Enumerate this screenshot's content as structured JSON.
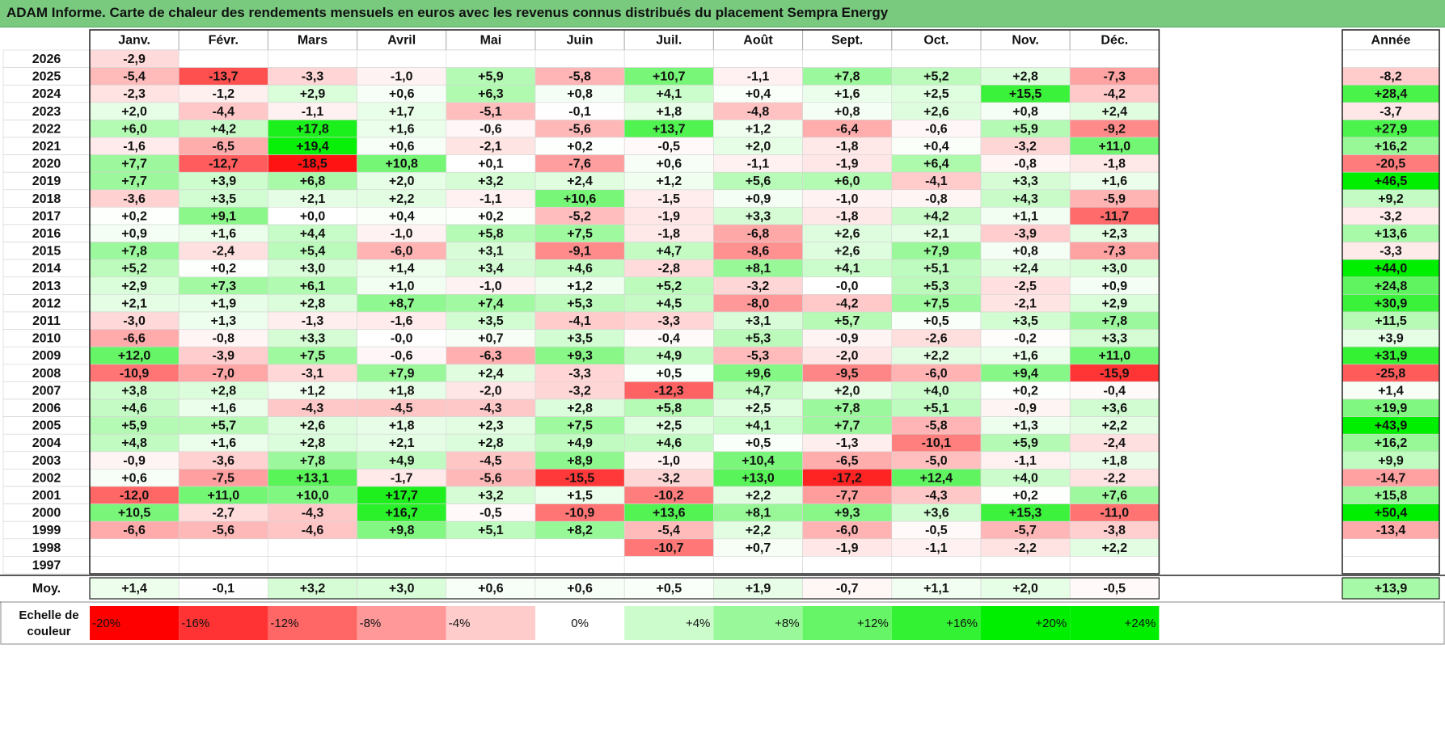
{
  "title": "ADAM Informe. Carte de chaleur des rendements mensuels en euros avec les revenus connus distribués du placement Sempra Energy",
  "chart_data": {
    "type": "heatmap",
    "title": "ADAM Informe. Carte de chaleur des rendements mensuels en euros avec les revenus connus distribués du placement Sempra Energy",
    "months": [
      "Janv.",
      "Févr.",
      "Mars",
      "Avril",
      "Mai",
      "Juin",
      "Juil.",
      "Août",
      "Sept.",
      "Oct.",
      "Nov.",
      "Déc."
    ],
    "year_header": "Année",
    "rows": [
      {
        "year": "2026",
        "values": [
          "-2,9",
          "",
          "",
          "",
          "",
          "",
          "",
          "",
          "",
          "",
          "",
          ""
        ],
        "annual": ""
      },
      {
        "year": "2025",
        "values": [
          "-5,4",
          "-13,7",
          "-3,3",
          "-1,0",
          "+5,9",
          "-5,8",
          "+10,7",
          "-1,1",
          "+7,8",
          "+5,2",
          "+2,8",
          "-7,3"
        ],
        "annual": "-8,2"
      },
      {
        "year": "2024",
        "values": [
          "-2,3",
          "-1,2",
          "+2,9",
          "+0,6",
          "+6,3",
          "+0,8",
          "+4,1",
          "+0,4",
          "+1,6",
          "+2,5",
          "+15,5",
          "-4,2"
        ],
        "annual": "+28,4"
      },
      {
        "year": "2023",
        "values": [
          "+2,0",
          "-4,4",
          "-1,1",
          "+1,7",
          "-5,1",
          "-0,1",
          "+1,8",
          "-4,8",
          "+0,8",
          "+2,6",
          "+0,8",
          "+2,4"
        ],
        "annual": "-3,7"
      },
      {
        "year": "2022",
        "values": [
          "+6,0",
          "+4,2",
          "+17,8",
          "+1,6",
          "-0,6",
          "-5,6",
          "+13,7",
          "+1,2",
          "-6,4",
          "-0,6",
          "+5,9",
          "-9,2"
        ],
        "annual": "+27,9"
      },
      {
        "year": "2021",
        "values": [
          "-1,6",
          "-6,5",
          "+19,4",
          "+0,6",
          "-2,1",
          "+0,2",
          "-0,5",
          "+2,0",
          "-1,8",
          "+0,4",
          "-3,2",
          "+11,0"
        ],
        "annual": "+16,2"
      },
      {
        "year": "2020",
        "values": [
          "+7,7",
          "-12,7",
          "-18,5",
          "+10,8",
          "+0,1",
          "-7,6",
          "+0,6",
          "-1,1",
          "-1,9",
          "+6,4",
          "-0,8",
          "-1,8"
        ],
        "annual": "-20,5"
      },
      {
        "year": "2019",
        "values": [
          "+7,7",
          "+3,9",
          "+6,8",
          "+2,0",
          "+3,2",
          "+2,4",
          "+1,2",
          "+5,6",
          "+6,0",
          "-4,1",
          "+3,3",
          "+1,6"
        ],
        "annual": "+46,5"
      },
      {
        "year": "2018",
        "values": [
          "-3,6",
          "+3,5",
          "+2,1",
          "+2,2",
          "-1,1",
          "+10,6",
          "-1,5",
          "+0,9",
          "-1,0",
          "-0,8",
          "+4,3",
          "-5,9"
        ],
        "annual": "+9,2"
      },
      {
        "year": "2017",
        "values": [
          "+0,2",
          "+9,1",
          "+0,0",
          "+0,4",
          "+0,2",
          "-5,2",
          "-1,9",
          "+3,3",
          "-1,8",
          "+4,2",
          "+1,1",
          "-11,7"
        ],
        "annual": "-3,2"
      },
      {
        "year": "2016",
        "values": [
          "+0,9",
          "+1,6",
          "+4,4",
          "-1,0",
          "+5,8",
          "+7,5",
          "-1,8",
          "-6,8",
          "+2,6",
          "+2,1",
          "-3,9",
          "+2,3"
        ],
        "annual": "+13,6"
      },
      {
        "year": "2015",
        "values": [
          "+7,8",
          "-2,4",
          "+5,4",
          "-6,0",
          "+3,1",
          "-9,1",
          "+4,7",
          "-8,6",
          "+2,6",
          "+7,9",
          "+0,8",
          "-7,3"
        ],
        "annual": "-3,3"
      },
      {
        "year": "2014",
        "values": [
          "+5,2",
          "+0,2",
          "+3,0",
          "+1,4",
          "+3,4",
          "+4,6",
          "-2,8",
          "+8,1",
          "+4,1",
          "+5,1",
          "+2,4",
          "+3,0"
        ],
        "annual": "+44,0"
      },
      {
        "year": "2013",
        "values": [
          "+2,9",
          "+7,3",
          "+6,1",
          "+1,0",
          "-1,0",
          "+1,2",
          "+5,2",
          "-3,2",
          "-0,0",
          "+5,3",
          "-2,5",
          "+0,9"
        ],
        "annual": "+24,8"
      },
      {
        "year": "2012",
        "values": [
          "+2,1",
          "+1,9",
          "+2,8",
          "+8,7",
          "+7,4",
          "+5,3",
          "+4,5",
          "-8,0",
          "-4,2",
          "+7,5",
          "-2,1",
          "+2,9"
        ],
        "annual": "+30,9"
      },
      {
        "year": "2011",
        "values": [
          "-3,0",
          "+1,3",
          "-1,3",
          "-1,6",
          "+3,5",
          "-4,1",
          "-3,3",
          "+3,1",
          "+5,7",
          "+0,5",
          "+3,5",
          "+7,8"
        ],
        "annual": "+11,5"
      },
      {
        "year": "2010",
        "values": [
          "-6,6",
          "-0,8",
          "+3,3",
          "-0,0",
          "+0,7",
          "+3,5",
          "-0,4",
          "+5,3",
          "-0,9",
          "-2,6",
          "-0,2",
          "+3,3"
        ],
        "annual": "+3,9"
      },
      {
        "year": "2009",
        "values": [
          "+12,0",
          "-3,9",
          "+7,5",
          "-0,6",
          "-6,3",
          "+9,3",
          "+4,9",
          "-5,3",
          "-2,0",
          "+2,2",
          "+1,6",
          "+11,0"
        ],
        "annual": "+31,9"
      },
      {
        "year": "2008",
        "values": [
          "-10,9",
          "-7,0",
          "-3,1",
          "+7,9",
          "+2,4",
          "-3,3",
          "+0,5",
          "+9,6",
          "-9,5",
          "-6,0",
          "+9,4",
          "-15,9"
        ],
        "annual": "-25,8"
      },
      {
        "year": "2007",
        "values": [
          "+3,8",
          "+2,8",
          "+1,2",
          "+1,8",
          "-2,0",
          "-3,2",
          "-12,3",
          "+4,7",
          "+2,0",
          "+4,0",
          "+0,2",
          "-0,4"
        ],
        "annual": "+1,4"
      },
      {
        "year": "2006",
        "values": [
          "+4,6",
          "+1,6",
          "-4,3",
          "-4,5",
          "-4,3",
          "+2,8",
          "+5,8",
          "+2,5",
          "+7,8",
          "+5,1",
          "-0,9",
          "+3,6"
        ],
        "annual": "+19,9"
      },
      {
        "year": "2005",
        "values": [
          "+5,9",
          "+5,7",
          "+2,6",
          "+1,8",
          "+2,3",
          "+7,5",
          "+2,5",
          "+4,1",
          "+7,7",
          "-5,8",
          "+1,3",
          "+2,2"
        ],
        "annual": "+43,9"
      },
      {
        "year": "2004",
        "values": [
          "+4,8",
          "+1,6",
          "+2,8",
          "+2,1",
          "+2,8",
          "+4,9",
          "+4,6",
          "+0,5",
          "-1,3",
          "-10,1",
          "+5,9",
          "-2,4"
        ],
        "annual": "+16,2"
      },
      {
        "year": "2003",
        "values": [
          "-0,9",
          "-3,6",
          "+7,8",
          "+4,9",
          "-4,5",
          "+8,9",
          "-1,0",
          "+10,4",
          "-6,5",
          "-5,0",
          "-1,1",
          "+1,8"
        ],
        "annual": "+9,9"
      },
      {
        "year": "2002",
        "values": [
          "+0,6",
          "-7,5",
          "+13,1",
          "-1,7",
          "-5,6",
          "-15,5",
          "-3,2",
          "+13,0",
          "-17,2",
          "+12,4",
          "+4,0",
          "-2,2"
        ],
        "annual": "-14,7"
      },
      {
        "year": "2001",
        "values": [
          "-12,0",
          "+11,0",
          "+10,0",
          "+17,7",
          "+3,2",
          "+1,5",
          "-10,2",
          "+2,2",
          "-7,7",
          "-4,3",
          "+0,2",
          "+7,6"
        ],
        "annual": "+15,8"
      },
      {
        "year": "2000",
        "values": [
          "+10,5",
          "-2,7",
          "-4,3",
          "+16,7",
          "-0,5",
          "-10,9",
          "+13,6",
          "+8,1",
          "+9,3",
          "+3,6",
          "+15,3",
          "-11,0"
        ],
        "annual": "+50,4"
      },
      {
        "year": "1999",
        "values": [
          "-6,6",
          "-5,6",
          "-4,6",
          "+9,8",
          "+5,1",
          "+8,2",
          "-5,4",
          "+2,2",
          "-6,0",
          "-0,5",
          "-5,7",
          "-3,8"
        ],
        "annual": "-13,4"
      },
      {
        "year": "1998",
        "values": [
          "",
          "",
          "",
          "",
          "",
          "",
          "-10,7",
          "+0,7",
          "-1,9",
          "-1,1",
          "-2,2",
          "+2,2"
        ],
        "annual": ""
      },
      {
        "year": "1997",
        "values": [
          "",
          "",
          "",
          "",
          "",
          "",
          "",
          "",
          "",
          "",
          "",
          ""
        ],
        "annual": ""
      }
    ],
    "average": {
      "label": "Moy.",
      "values": [
        "+1,4",
        "-0,1",
        "+3,2",
        "+3,0",
        "+0,6",
        "+0,6",
        "+0,5",
        "+1,9",
        "-0,7",
        "+1,1",
        "+2,0",
        "-0,5"
      ],
      "annual": "+13,9"
    },
    "legend": {
      "label_line1": "Echelle de",
      "label_line2": "couleur",
      "steps": [
        "-20%",
        "-16%",
        "-12%",
        "-8%",
        "-4%",
        "0%",
        "+4%",
        "+8%",
        "+12%",
        "+16%",
        "+20%",
        "+24%"
      ]
    },
    "color_scale": {
      "negative": "#ff0000",
      "neutral": "#ffffff",
      "positive": "#00ee00"
    }
  }
}
